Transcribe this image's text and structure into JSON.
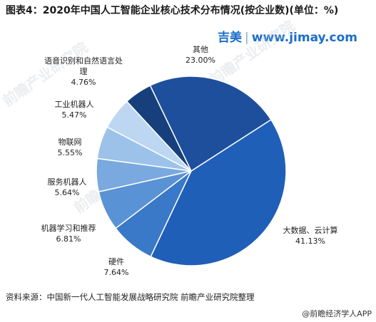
{
  "title": "图表4：2020年中国人工智能企业核心技术分布情况(按企业数)(单位：%)",
  "watermark": {
    "brand": "吉美",
    "site": "www.jimay.com",
    "background_text": "前瞻产业研究院"
  },
  "footer": {
    "source": "资料来源：中国新一代人工智能发展战略研究院 前瞻产业研究院整理",
    "app": "@前瞻经济学人APP"
  },
  "chart_data": {
    "type": "pie",
    "title": "图表4：2020年中国人工智能企业核心技术分布情况(按企业数)(单位：%)",
    "unit": "%",
    "slices": [
      {
        "label": "大数据、云计算",
        "value": 41.13,
        "value_label": "41.13%",
        "color": "#1f5fb8"
      },
      {
        "label": "硬件",
        "value": 7.64,
        "value_label": "7.64%",
        "color": "#3a78c8"
      },
      {
        "label": "机器学习和推荐",
        "value": 6.81,
        "value_label": "6.81%",
        "color": "#5a92d6"
      },
      {
        "label": "服务机器人",
        "value": 5.64,
        "value_label": "5.64%",
        "color": "#7aa9df"
      },
      {
        "label": "物联网",
        "value": 5.55,
        "value_label": "5.55%",
        "color": "#9cc2ea"
      },
      {
        "label": "工业机器人",
        "value": 5.47,
        "value_label": "5.47%",
        "color": "#bdd7f2"
      },
      {
        "label": "语音识别和自然语言处理",
        "value": 4.76,
        "value_label": "4.76%",
        "color": "#163f7c"
      },
      {
        "label": "其他",
        "value": 23.0,
        "value_label": "23.00%",
        "color": "#1e4f9c"
      }
    ]
  }
}
